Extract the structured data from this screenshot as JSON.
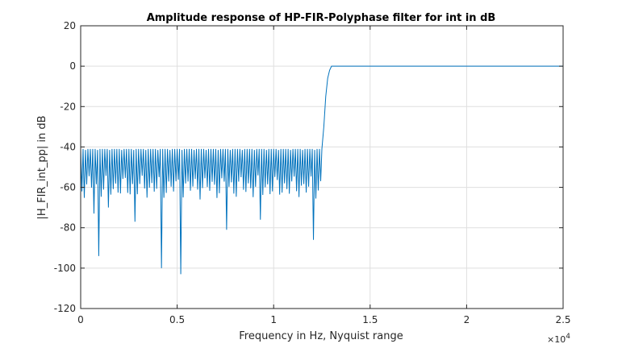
{
  "chart_data": {
    "type": "line",
    "title": "Amplitude response of HP-FIR-Polyphase filter for int in dB",
    "xlabel": "Frequency in Hz, Nyquist range",
    "ylabel": "|H_FIR_int_pp| in dB",
    "x_exponent_label": "×10",
    "x_exponent_power": "4",
    "xlim": [
      0,
      25000
    ],
    "ylim": [
      -120,
      20
    ],
    "x_tick_values": [
      0,
      5000,
      10000,
      15000,
      20000,
      25000
    ],
    "x_tick_labels": [
      "0",
      "0.5",
      "1",
      "1.5",
      "2",
      "2.5"
    ],
    "y_tick_values": [
      -120,
      -100,
      -80,
      -60,
      -40,
      -20,
      0,
      20
    ],
    "y_tick_labels": [
      "-120",
      "-100",
      "-80",
      "-60",
      "-40",
      "-20",
      "0",
      "20"
    ],
    "grid": true,
    "line_color": "#0072bd",
    "series": [
      {
        "stopband_end_hz": 12500,
        "stopband_ripple_peak_db": -41,
        "passband_start_hz": 13000,
        "passband_level_db": 0,
        "x": [
          0,
          1000,
          2000,
          3000,
          4000,
          5000,
          6000,
          7000,
          8000,
          9000,
          10000,
          11000,
          12000,
          12500,
          12600,
          12700,
          12800,
          12900,
          13000,
          14000,
          16000,
          18000,
          20000,
          22000,
          24000,
          25000
        ],
        "y": [
          -41,
          -41,
          -41,
          -41,
          -41,
          -41,
          -41,
          -41,
          -41,
          -41,
          -41,
          -41,
          -41,
          -41,
          -30,
          -15,
          -6,
          -2,
          0,
          0,
          0,
          0,
          0,
          0,
          0,
          0
        ],
        "notable_nulls": [
          {
            "x": 650,
            "y": -73
          },
          {
            "x": 900,
            "y": -94
          },
          {
            "x": 1450,
            "y": -70
          },
          {
            "x": 2800,
            "y": -77
          },
          {
            "x": 4200,
            "y": -100
          },
          {
            "x": 5200,
            "y": -103
          },
          {
            "x": 7600,
            "y": -81
          },
          {
            "x": 9300,
            "y": -76
          },
          {
            "x": 12100,
            "y": -86
          }
        ]
      }
    ]
  }
}
